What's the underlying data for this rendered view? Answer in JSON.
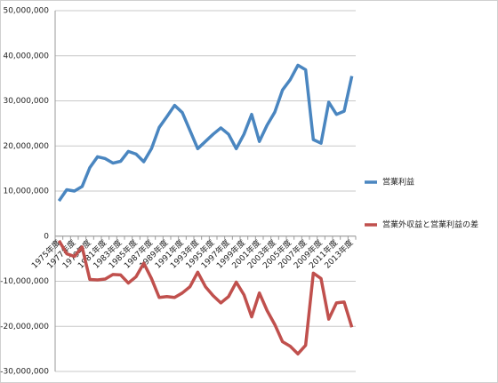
{
  "chart_data": {
    "type": "line",
    "categories": [
      "1975年度",
      null,
      "1977年度",
      null,
      "1979年度",
      null,
      "1981年度",
      null,
      "1983年度",
      null,
      "1985年度",
      null,
      "1987年度",
      null,
      "1989年度",
      null,
      "1991年度",
      null,
      "1993年度",
      null,
      "1995年度",
      null,
      "1997年度",
      null,
      "1999年度",
      null,
      "2001年度",
      null,
      "2003年度",
      null,
      "2005年度",
      null,
      "2007年度",
      null,
      "2009年度",
      null,
      "2011年度",
      null,
      "2013年度"
    ],
    "series": [
      {
        "name": "営業利益",
        "color": "#4a86c0",
        "values": [
          7800000,
          10300000,
          10000000,
          11000000,
          15200000,
          17600000,
          17200000,
          16200000,
          16600000,
          18800000,
          18200000,
          16500000,
          19400000,
          24100000,
          26500000,
          29000000,
          27400000,
          23400000,
          19400000,
          21000000,
          22600000,
          24000000,
          22600000,
          19400000,
          22600000,
          27000000,
          21000000,
          24600000,
          27500000,
          32400000,
          34700000,
          37900000,
          36900000,
          21400000,
          20600000,
          29700000,
          27000000,
          27700000,
          35500000
        ]
      },
      {
        "name": "営業外収益と営業利益の差",
        "color": "#c0504d",
        "values": [
          -1000000,
          -3900000,
          -4500000,
          -2400000,
          -9600000,
          -9700000,
          -9500000,
          -8500000,
          -8600000,
          -10400000,
          -9000000,
          -6000000,
          -9400000,
          -13600000,
          -13400000,
          -13600000,
          -12600000,
          -11200000,
          -8000000,
          -11200000,
          -13200000,
          -14800000,
          -13400000,
          -10200000,
          -13000000,
          -17900000,
          -12600000,
          -16500000,
          -19600000,
          -23400000,
          -24400000,
          -26100000,
          -24200000,
          -8200000,
          -9400000,
          -18400000,
          -14800000,
          -14600000,
          -20200000
        ]
      }
    ],
    "ylim": [
      -30000000,
      50000000
    ],
    "yticks": [
      {
        "value": -30000000,
        "label": "-30,000,000"
      },
      {
        "value": -20000000,
        "label": "-20,000,000"
      },
      {
        "value": -10000000,
        "label": "-10,000,000"
      },
      0,
      {
        "value": 10000000,
        "label": "10,000,000"
      },
      {
        "value": 20000000,
        "label": "20,000,000"
      },
      {
        "value": 30000000,
        "label": "30,000,000"
      },
      {
        "value": 40000000,
        "label": "40,000,000"
      },
      {
        "value": 50000000,
        "label": "50,000,000"
      }
    ],
    "grid": true,
    "legend": "right"
  }
}
